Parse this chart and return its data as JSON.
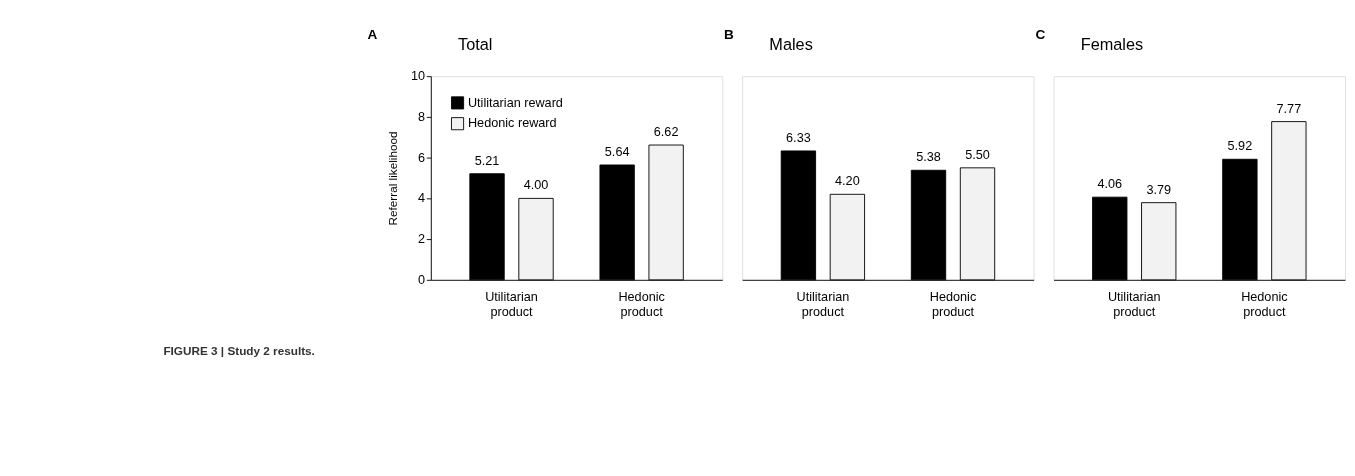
{
  "chart_data": [
    {
      "type": "bar",
      "title": "Total",
      "ylabel": "Referral likelihood",
      "categories": [
        "Utilitarian product",
        "Hedonic product"
      ],
      "series": [
        {
          "name": "Utilitarian reward",
          "color": "#000000",
          "values": [
            5.21,
            5.64
          ],
          "value_labels": [
            "5.21",
            "5.64"
          ]
        },
        {
          "name": "Hedonic reward",
          "color": "#f2f2f2",
          "values": [
            4.0,
            6.62
          ],
          "value_labels": [
            "4.00",
            "6.62"
          ]
        }
      ],
      "ylim": [
        0,
        10
      ],
      "yticks": [
        0,
        2,
        4,
        6,
        8,
        10
      ],
      "legend": "top left",
      "grid": false,
      "annotations": [
        "A",
        "FIGURE 3 | Study 2 results."
      ]
    },
    {
      "type": "bar",
      "title": "Males",
      "categories": [
        "Utilitarian product",
        "Hedonic product"
      ],
      "series": [
        {
          "color": "#000000",
          "values": [
            6.33,
            5.38
          ],
          "value_labels": [
            "6.33",
            "5.38"
          ]
        },
        {
          "color": "#f2f2f2",
          "values": [
            4.2,
            5.5
          ],
          "value_labels": [
            "4.20",
            "5.50"
          ]
        }
      ],
      "ylim": [
        0,
        10
      ],
      "tick_labels": "x",
      "grid": false,
      "annotations": [
        "B"
      ]
    },
    {
      "type": "bar",
      "title": "Females",
      "categories": [
        "Utilitarian product",
        "Hedonic product"
      ],
      "series": [
        {
          "color": "#000000",
          "values": [
            4.06,
            5.92
          ],
          "value_labels": [
            "4.06",
            "5.92"
          ]
        },
        {
          "color": "#f2f2f2",
          "values": [
            3.79,
            7.77
          ],
          "value_labels": [
            "3.79",
            "7.77"
          ]
        }
      ],
      "ylim": [
        0,
        10
      ],
      "tick_labels": "x",
      "grid": false,
      "annotations": [
        "C"
      ]
    }
  ]
}
